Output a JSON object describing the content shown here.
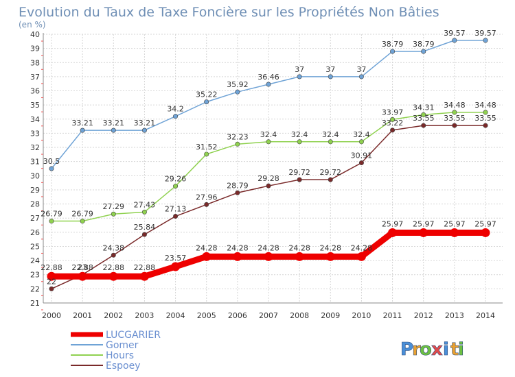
{
  "chart_data": {
    "type": "line",
    "title": "Evolution du Taux de Taxe Foncière sur les Propriétés Non Bâties",
    "subtitle": "(en %)",
    "x": [
      "2000",
      "2001",
      "2002",
      "2003",
      "2004",
      "2005",
      "2006",
      "2007",
      "2008",
      "2009",
      "2010",
      "2011",
      "2012",
      "2013",
      "2014"
    ],
    "ylim": [
      21,
      40
    ],
    "yticks": [
      21,
      22,
      23,
      24,
      25,
      26,
      27,
      28,
      29,
      30,
      31,
      32,
      33,
      34,
      35,
      36,
      37,
      38,
      39,
      40
    ],
    "grid": true,
    "legend_position": "bottom-left",
    "series": [
      {
        "name": "LUCGARIER",
        "color": "#ee0000",
        "thick": true,
        "values": [
          22.88,
          22.88,
          22.88,
          22.88,
          23.57,
          24.28,
          24.28,
          24.28,
          24.28,
          24.28,
          24.28,
          25.97,
          25.97,
          25.97,
          25.97
        ],
        "labels": [
          "22.88",
          "22.88",
          "22.88",
          "22.88",
          "23.57",
          "24.28",
          "24.28",
          "24.28",
          "24.28",
          "24.28",
          "24.28",
          "25.97",
          "25.97",
          "25.97",
          "25.97"
        ]
      },
      {
        "name": "Gomer",
        "color": "#6fa3d6",
        "thick": false,
        "values": [
          30.5,
          33.21,
          33.21,
          33.21,
          34.2,
          35.22,
          35.92,
          36.46,
          37,
          37,
          37,
          38.79,
          38.79,
          39.57,
          39.57
        ],
        "labels": [
          "30.5",
          "33.21",
          "33.21",
          "33.21",
          "34.2",
          "35.22",
          "35.92",
          "36.46",
          "37",
          "37",
          "37",
          "38.79",
          "38.79",
          "39.57",
          "39.57"
        ]
      },
      {
        "name": "Hours",
        "color": "#8fd14f",
        "thick": false,
        "values": [
          26.79,
          26.79,
          27.29,
          27.43,
          29.26,
          31.52,
          32.23,
          32.4,
          32.4,
          32.4,
          32.4,
          33.97,
          34.31,
          34.48,
          34.48
        ],
        "labels": [
          "26.79",
          "26.79",
          "27.29",
          "27.43",
          "29.26",
          "31.52",
          "32.23",
          "32.4",
          "32.4",
          "32.4",
          "32.4",
          "33.97",
          "34.31",
          "34.48",
          "34.48"
        ]
      },
      {
        "name": "Espoey",
        "color": "#7a2a2a",
        "thick": false,
        "values": [
          22,
          23,
          24.38,
          25.84,
          27.13,
          27.96,
          28.79,
          29.28,
          29.72,
          29.72,
          30.91,
          33.22,
          33.55,
          33.55,
          33.55
        ],
        "labels": [
          "22",
          "23",
          "24.38",
          "25.84",
          "27.13",
          "27.96",
          "28.79",
          "29.28",
          "29.72",
          "29.72",
          "30.91",
          "33.22",
          "33.55",
          "33.55",
          "33.55"
        ]
      }
    ]
  },
  "brand": {
    "letters": [
      "P",
      "r",
      "o",
      "x",
      "i",
      "t",
      "i"
    ],
    "colors": [
      "#4a8fd8",
      "#e8a030",
      "#6cc040",
      "#e24a4a",
      "#4a8fd8",
      "#e8a030",
      "#6cc040"
    ]
  }
}
